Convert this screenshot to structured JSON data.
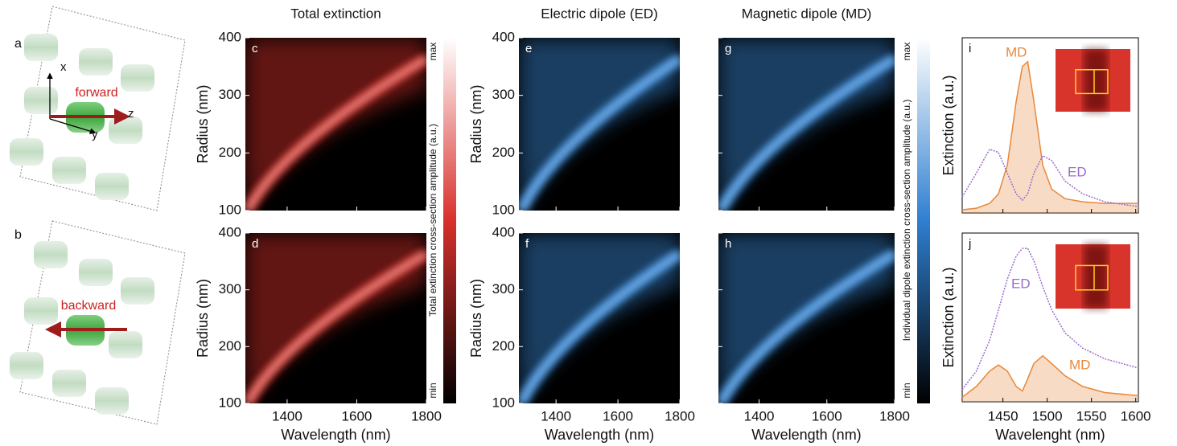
{
  "panels": {
    "a": {
      "letter": "a",
      "arrow": "forward",
      "axes": [
        "x",
        "y",
        "z"
      ]
    },
    "b": {
      "letter": "b",
      "arrow": "backward"
    }
  },
  "maps": {
    "titles": [
      "Total extinction",
      "Electric dipole (ED)",
      "Magnetic dipole (MD)"
    ],
    "letters": [
      "c",
      "d",
      "e",
      "f",
      "g",
      "h"
    ],
    "xlabel": "Wavelength (nm)",
    "ylabel": "Radius (nm)",
    "xlim": [
      1280,
      1800
    ],
    "ylim": [
      100,
      400
    ],
    "xticks": [
      1400,
      1600,
      1800
    ],
    "yticks": [
      100,
      200,
      300,
      400
    ]
  },
  "colorbars": [
    {
      "title": "Total extinction cross-section amplitude (a.u.)",
      "max": "max",
      "min": "min"
    },
    {
      "title": "Individual dipole extinction cross-section amplitude (a.u.)",
      "max": "max",
      "min": "min"
    }
  ],
  "spectra": {
    "xlabel": "Wavelenght (nm)",
    "ylabel": "Extinction (a.u.)",
    "xlim": [
      1404,
      1603
    ],
    "xticks": [
      1450,
      1500,
      1550,
      1600
    ],
    "ylim": [
      0,
      1.1
    ],
    "x": [
      1404,
      1420,
      1435,
      1445,
      1455,
      1465,
      1472,
      1478,
      1485,
      1495,
      1505,
      1520,
      1540,
      1565,
      1603
    ],
    "panels": [
      {
        "letter": "i",
        "series": [
          {
            "name": "MD",
            "color": "#e8883a",
            "fill": true,
            "values": [
              0.02,
              0.03,
              0.06,
              0.12,
              0.3,
              0.7,
              0.92,
              0.95,
              0.7,
              0.3,
              0.15,
              0.09,
              0.07,
              0.06,
              0.06
            ]
          },
          {
            "name": "ED",
            "color": "#9b6ad0",
            "fill": false,
            "values": [
              0.1,
              0.25,
              0.4,
              0.38,
              0.25,
              0.12,
              0.08,
              0.12,
              0.25,
              0.36,
              0.33,
              0.2,
              0.12,
              0.07,
              0.04
            ]
          }
        ]
      },
      {
        "letter": "j",
        "series": [
          {
            "name": "MD",
            "color": "#e8883a",
            "fill": true,
            "values": [
              0.03,
              0.1,
              0.2,
              0.24,
              0.2,
              0.1,
              0.07,
              0.15,
              0.25,
              0.3,
              0.25,
              0.17,
              0.1,
              0.06,
              0.04
            ]
          },
          {
            "name": "ED",
            "color": "#9b6ad0",
            "fill": false,
            "values": [
              0.08,
              0.2,
              0.4,
              0.6,
              0.8,
              0.95,
              1.0,
              1.0,
              0.92,
              0.75,
              0.6,
              0.45,
              0.35,
              0.28,
              0.22
            ]
          }
        ]
      }
    ]
  }
}
